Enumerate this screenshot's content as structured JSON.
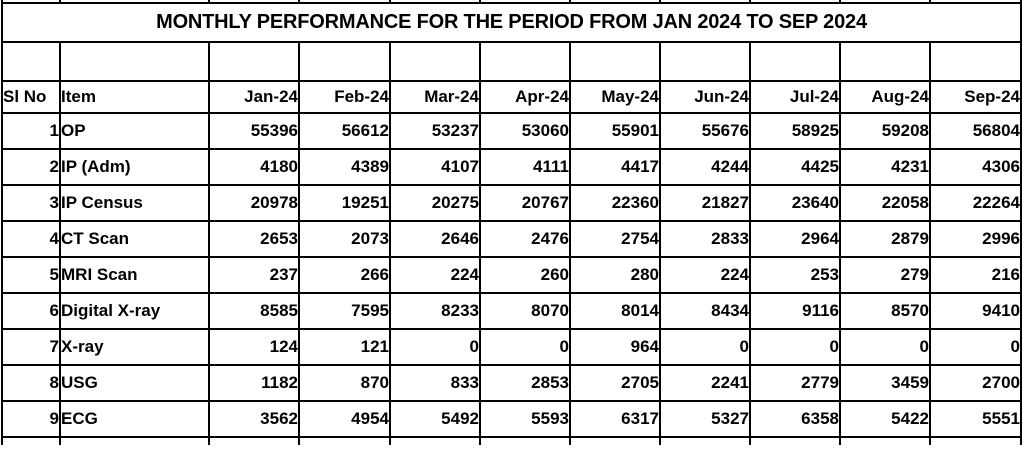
{
  "table": {
    "title": "MONTHLY PERFORMANCE FOR THE PERIOD FROM JAN 2024 TO SEP 2024",
    "columns": [
      "Sl No",
      "Item",
      "Jan-24",
      "Feb-24",
      "Mar-24",
      "Apr-24",
      "May-24",
      "Jun-24",
      "Jul-24",
      "Aug-24",
      "Sep-24"
    ],
    "rows": [
      {
        "sl_no": "1",
        "item": "OP",
        "values": [
          "55396",
          "56612",
          "53237",
          "53060",
          "55901",
          "55676",
          "58925",
          "59208",
          "56804"
        ]
      },
      {
        "sl_no": "2",
        "item": "IP (Adm)",
        "values": [
          "4180",
          "4389",
          "4107",
          "4111",
          "4417",
          "4244",
          "4425",
          "4231",
          "4306"
        ]
      },
      {
        "sl_no": "3",
        "item": "IP Census",
        "values": [
          "20978",
          "19251",
          "20275",
          "20767",
          "22360",
          "21827",
          "23640",
          "22058",
          "22264"
        ]
      },
      {
        "sl_no": "4",
        "item": "CT Scan",
        "values": [
          "2653",
          "2073",
          "2646",
          "2476",
          "2754",
          "2833",
          "2964",
          "2879",
          "2996"
        ]
      },
      {
        "sl_no": "5",
        "item": "MRI Scan",
        "values": [
          "237",
          "266",
          "224",
          "260",
          "280",
          "224",
          "253",
          "279",
          "216"
        ]
      },
      {
        "sl_no": "6",
        "item": "Digital X-ray",
        "values": [
          "8585",
          "7595",
          "8233",
          "8070",
          "8014",
          "8434",
          "9116",
          "8570",
          "9410"
        ]
      },
      {
        "sl_no": "7",
        "item": "X-ray",
        "values": [
          "124",
          "121",
          "0",
          "0",
          "964",
          "0",
          "0",
          "0",
          "0"
        ]
      },
      {
        "sl_no": "8",
        "item": "USG",
        "values": [
          "1182",
          "870",
          "833",
          "2853",
          "2705",
          "2241",
          "2779",
          "3459",
          "2700"
        ]
      },
      {
        "sl_no": "9",
        "item": "ECG",
        "values": [
          "3562",
          "4954",
          "5492",
          "5593",
          "6317",
          "5327",
          "6358",
          "5422",
          "5551"
        ]
      }
    ]
  }
}
